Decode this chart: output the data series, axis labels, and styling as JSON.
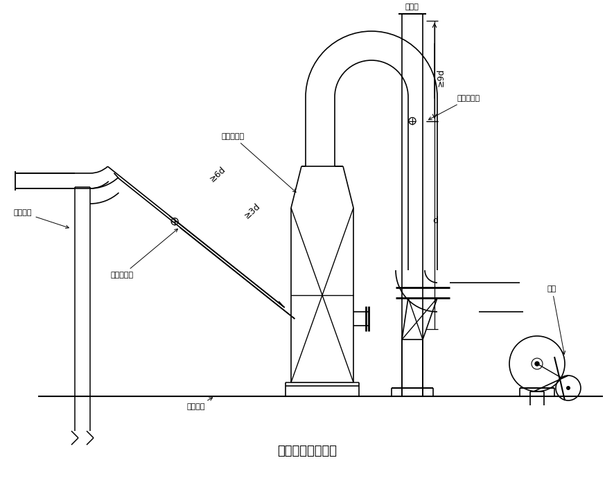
{
  "title": "采样孔位置示意图",
  "title_fontsize": 13,
  "background_color": "#ffffff",
  "line_color": "#000000",
  "labels": {
    "inlet_pipe": "进气管道",
    "inlet_sampling": "进气采样孔",
    "ground": "楼顶地面",
    "purifier": "废气净化塔",
    "outlet_port": "出气口",
    "outlet_sampling": "出气采样孔",
    "fan": "风机",
    "dist_6d": "≥6d",
    "dist_3d": "≥3d",
    "dist_9d": "≥9d",
    "dist_d": "d"
  }
}
